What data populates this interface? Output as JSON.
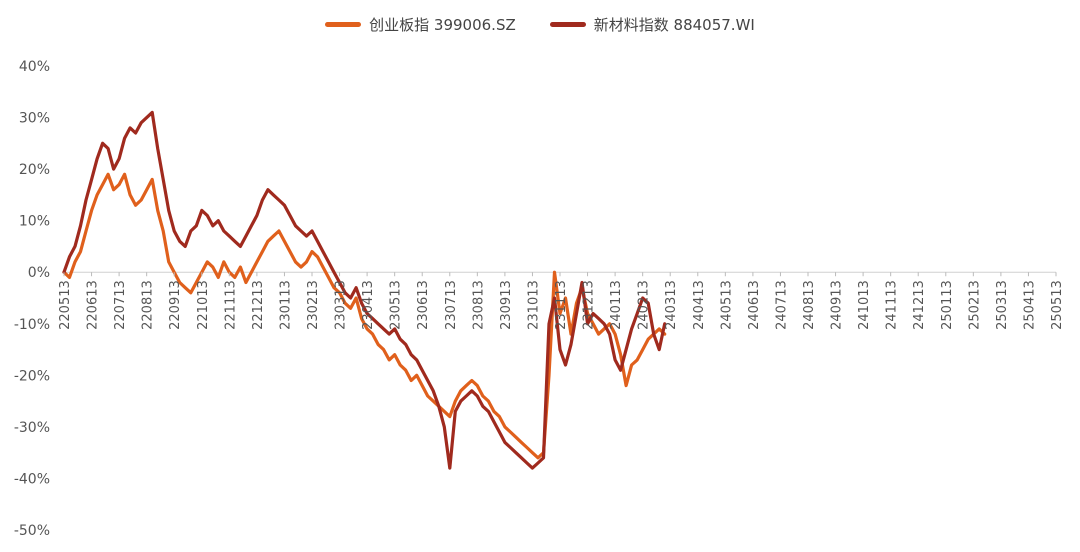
{
  "chart_data": {
    "type": "line",
    "title": "",
    "xlabel": "",
    "ylabel": "",
    "ylim": [
      -50,
      40
    ],
    "yticks": [
      40,
      30,
      20,
      10,
      0,
      -10,
      -20,
      -30,
      -40,
      -50
    ],
    "ytick_labels": [
      "40%",
      "30%",
      "20%",
      "10%",
      "0%",
      "-10%",
      "-20%",
      "-30%",
      "-40%",
      "-50%"
    ],
    "x_tick_labels": [
      "220513",
      "220613",
      "220713",
      "220813",
      "220913",
      "221013",
      "221113",
      "221213",
      "230113",
      "230213",
      "230313",
      "230413",
      "230513",
      "230613",
      "230713",
      "230813",
      "230913",
      "231013",
      "231113",
      "231213",
      "240113",
      "240213",
      "240313",
      "240413",
      "240513",
      "240613",
      "240713",
      "240813",
      "240913",
      "241013",
      "241113",
      "241213",
      "250113",
      "250213",
      "250313",
      "250413",
      "250513"
    ],
    "legend_position": "top",
    "grid": false,
    "series": [
      {
        "name": "创业板指 399006.SZ",
        "color": "#E0601C",
        "points": [
          [
            0,
            0
          ],
          [
            0.2,
            -1
          ],
          [
            0.4,
            2
          ],
          [
            0.6,
            4
          ],
          [
            0.8,
            8
          ],
          [
            1.0,
            12
          ],
          [
            1.2,
            15
          ],
          [
            1.4,
            17
          ],
          [
            1.6,
            19
          ],
          [
            1.8,
            16
          ],
          [
            2.0,
            17
          ],
          [
            2.2,
            19
          ],
          [
            2.4,
            15
          ],
          [
            2.6,
            13
          ],
          [
            2.8,
            14
          ],
          [
            3.0,
            16
          ],
          [
            3.2,
            18
          ],
          [
            3.4,
            12
          ],
          [
            3.6,
            8
          ],
          [
            3.8,
            2
          ],
          [
            4.0,
            0
          ],
          [
            4.2,
            -2
          ],
          [
            4.4,
            -3
          ],
          [
            4.6,
            -4
          ],
          [
            4.8,
            -2
          ],
          [
            5.0,
            0
          ],
          [
            5.2,
            2
          ],
          [
            5.4,
            1
          ],
          [
            5.6,
            -1
          ],
          [
            5.8,
            2
          ],
          [
            6.0,
            0
          ],
          [
            6.2,
            -1
          ],
          [
            6.4,
            1
          ],
          [
            6.6,
            -2
          ],
          [
            6.8,
            0
          ],
          [
            7.0,
            2
          ],
          [
            7.2,
            4
          ],
          [
            7.4,
            6
          ],
          [
            7.6,
            7
          ],
          [
            7.8,
            8
          ],
          [
            8.0,
            6
          ],
          [
            8.2,
            4
          ],
          [
            8.4,
            2
          ],
          [
            8.6,
            1
          ],
          [
            8.8,
            2
          ],
          [
            9.0,
            4
          ],
          [
            9.2,
            3
          ],
          [
            9.4,
            1
          ],
          [
            9.6,
            -1
          ],
          [
            9.8,
            -3
          ],
          [
            10.0,
            -4
          ],
          [
            10.2,
            -6
          ],
          [
            10.4,
            -7
          ],
          [
            10.6,
            -5
          ],
          [
            10.8,
            -9
          ],
          [
            11.0,
            -11
          ],
          [
            11.2,
            -12
          ],
          [
            11.4,
            -14
          ],
          [
            11.6,
            -15
          ],
          [
            11.8,
            -17
          ],
          [
            12.0,
            -16
          ],
          [
            12.2,
            -18
          ],
          [
            12.4,
            -19
          ],
          [
            12.6,
            -21
          ],
          [
            12.8,
            -20
          ],
          [
            13.0,
            -22
          ],
          [
            13.2,
            -24
          ],
          [
            13.4,
            -25
          ],
          [
            13.6,
            -26
          ],
          [
            13.8,
            -27
          ],
          [
            14.0,
            -28
          ],
          [
            14.2,
            -25
          ],
          [
            14.4,
            -23
          ],
          [
            14.6,
            -22
          ],
          [
            14.8,
            -21
          ],
          [
            15.0,
            -22
          ],
          [
            15.2,
            -24
          ],
          [
            15.4,
            -25
          ],
          [
            15.6,
            -27
          ],
          [
            15.8,
            -28
          ],
          [
            16.0,
            -30
          ],
          [
            16.2,
            -31
          ],
          [
            16.4,
            -32
          ],
          [
            16.6,
            -33
          ],
          [
            16.8,
            -34
          ],
          [
            17.0,
            -35
          ],
          [
            17.2,
            -36
          ],
          [
            17.4,
            -35
          ],
          [
            17.6,
            -20
          ],
          [
            17.8,
            0
          ],
          [
            18.0,
            -8
          ],
          [
            18.2,
            -5
          ],
          [
            18.4,
            -12
          ],
          [
            18.6,
            -6
          ],
          [
            18.8,
            -3
          ],
          [
            19.0,
            -8
          ],
          [
            19.2,
            -10
          ],
          [
            19.4,
            -12
          ],
          [
            19.6,
            -11
          ],
          [
            19.8,
            -10
          ],
          [
            20.0,
            -12
          ],
          [
            20.2,
            -16
          ],
          [
            20.4,
            -22
          ],
          [
            20.6,
            -18
          ],
          [
            20.8,
            -17
          ],
          [
            21.0,
            -15
          ],
          [
            21.2,
            -13
          ],
          [
            21.4,
            -12
          ],
          [
            21.6,
            -11
          ],
          [
            21.8,
            -12
          ]
        ]
      },
      {
        "name": "新材料指数 884057.WI",
        "color": "#A02A1E",
        "points": [
          [
            0,
            0
          ],
          [
            0.2,
            3
          ],
          [
            0.4,
            5
          ],
          [
            0.6,
            9
          ],
          [
            0.8,
            14
          ],
          [
            1.0,
            18
          ],
          [
            1.2,
            22
          ],
          [
            1.4,
            25
          ],
          [
            1.6,
            24
          ],
          [
            1.8,
            20
          ],
          [
            2.0,
            22
          ],
          [
            2.2,
            26
          ],
          [
            2.4,
            28
          ],
          [
            2.6,
            27
          ],
          [
            2.8,
            29
          ],
          [
            3.0,
            30
          ],
          [
            3.2,
            31
          ],
          [
            3.4,
            24
          ],
          [
            3.6,
            18
          ],
          [
            3.8,
            12
          ],
          [
            4.0,
            8
          ],
          [
            4.2,
            6
          ],
          [
            4.4,
            5
          ],
          [
            4.6,
            8
          ],
          [
            4.8,
            9
          ],
          [
            5.0,
            12
          ],
          [
            5.2,
            11
          ],
          [
            5.4,
            9
          ],
          [
            5.6,
            10
          ],
          [
            5.8,
            8
          ],
          [
            6.0,
            7
          ],
          [
            6.2,
            6
          ],
          [
            6.4,
            5
          ],
          [
            6.6,
            7
          ],
          [
            6.8,
            9
          ],
          [
            7.0,
            11
          ],
          [
            7.2,
            14
          ],
          [
            7.4,
            16
          ],
          [
            7.6,
            15
          ],
          [
            7.8,
            14
          ],
          [
            8.0,
            13
          ],
          [
            8.2,
            11
          ],
          [
            8.4,
            9
          ],
          [
            8.6,
            8
          ],
          [
            8.8,
            7
          ],
          [
            9.0,
            8
          ],
          [
            9.2,
            6
          ],
          [
            9.4,
            4
          ],
          [
            9.6,
            2
          ],
          [
            9.8,
            0
          ],
          [
            10.0,
            -2
          ],
          [
            10.2,
            -4
          ],
          [
            10.4,
            -5
          ],
          [
            10.6,
            -3
          ],
          [
            10.8,
            -6
          ],
          [
            11.0,
            -8
          ],
          [
            11.2,
            -9
          ],
          [
            11.4,
            -10
          ],
          [
            11.6,
            -11
          ],
          [
            11.8,
            -12
          ],
          [
            12.0,
            -11
          ],
          [
            12.2,
            -13
          ],
          [
            12.4,
            -14
          ],
          [
            12.6,
            -16
          ],
          [
            12.8,
            -17
          ],
          [
            13.0,
            -19
          ],
          [
            13.2,
            -21
          ],
          [
            13.4,
            -23
          ],
          [
            13.6,
            -26
          ],
          [
            13.8,
            -30
          ],
          [
            14.0,
            -38
          ],
          [
            14.2,
            -27
          ],
          [
            14.4,
            -25
          ],
          [
            14.6,
            -24
          ],
          [
            14.8,
            -23
          ],
          [
            15.0,
            -24
          ],
          [
            15.2,
            -26
          ],
          [
            15.4,
            -27
          ],
          [
            15.6,
            -29
          ],
          [
            15.8,
            -31
          ],
          [
            16.0,
            -33
          ],
          [
            16.2,
            -34
          ],
          [
            16.4,
            -35
          ],
          [
            16.6,
            -36
          ],
          [
            16.8,
            -37
          ],
          [
            17.0,
            -38
          ],
          [
            17.2,
            -37
          ],
          [
            17.4,
            -36
          ],
          [
            17.6,
            -10
          ],
          [
            17.8,
            -5
          ],
          [
            18.0,
            -15
          ],
          [
            18.2,
            -18
          ],
          [
            18.4,
            -14
          ],
          [
            18.6,
            -8
          ],
          [
            18.8,
            -2
          ],
          [
            19.0,
            -10
          ],
          [
            19.2,
            -8
          ],
          [
            19.4,
            -9
          ],
          [
            19.6,
            -10
          ],
          [
            19.8,
            -12
          ],
          [
            20.0,
            -17
          ],
          [
            20.2,
            -19
          ],
          [
            20.4,
            -15
          ],
          [
            20.6,
            -11
          ],
          [
            20.8,
            -8
          ],
          [
            21.0,
            -5
          ],
          [
            21.2,
            -6
          ],
          [
            21.4,
            -12
          ],
          [
            21.6,
            -15
          ],
          [
            21.8,
            -10
          ]
        ]
      }
    ]
  }
}
